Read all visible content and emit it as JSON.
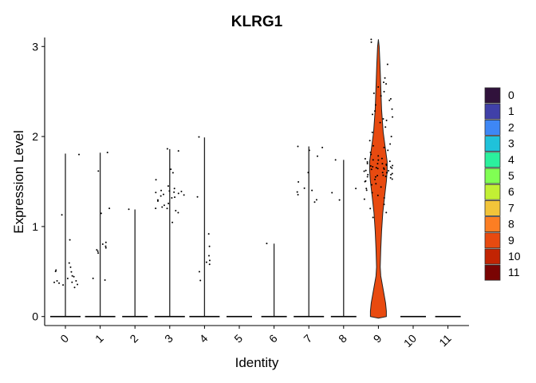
{
  "chart_data": {
    "type": "violin",
    "title": "KLRG1",
    "xlabel": "Identity",
    "ylabel": "Expression Level",
    "ylim": [
      -0.1,
      3.1
    ],
    "yticks": [
      0,
      1,
      2,
      3
    ],
    "categories": [
      "0",
      "1",
      "2",
      "3",
      "4",
      "5",
      "6",
      "7",
      "8",
      "9",
      "10",
      "11"
    ],
    "colors": [
      "#30123B",
      "#4040A8",
      "#3E87F5",
      "#1FC2DA",
      "#2BF19D",
      "#80FF53",
      "#C2F034",
      "#F2C43A",
      "#FC7E23",
      "#E84A10",
      "#C22403",
      "#7A0403"
    ],
    "legend_position": "right",
    "groups": [
      {
        "id": "0",
        "max": 1.81,
        "high_points": [
          0.85,
          0.6,
          0.55,
          0.52,
          0.5,
          0.45,
          0.44,
          0.42,
          0.4,
          0.4,
          0.38,
          0.38,
          0.37,
          0.36,
          0.35,
          0.32,
          0.5,
          1.13,
          1.8
        ]
      },
      {
        "id": "1",
        "max": 1.82,
        "high_points": [
          1.82,
          1.62,
          1.2,
          1.15,
          0.82,
          0.8,
          0.78,
          0.76,
          0.74,
          0.73,
          0.7,
          0.42,
          0.4
        ]
      },
      {
        "id": "2",
        "max": 1.19,
        "high_points": [
          1.19
        ]
      },
      {
        "id": "3",
        "max": 1.86,
        "high_points": [
          1.86,
          1.84,
          1.64,
          1.6,
          1.52,
          1.45,
          1.42,
          1.4,
          1.4,
          1.39,
          1.38,
          1.38,
          1.37,
          1.36,
          1.35,
          1.34,
          1.33,
          1.32,
          1.3,
          1.28,
          1.26,
          1.24,
          1.22,
          1.2,
          1.2,
          1.18,
          1.16,
          1.05
        ]
      },
      {
        "id": "4",
        "max": 1.99,
        "high_points": [
          1.99,
          1.33,
          0.92,
          0.78,
          0.68,
          0.62,
          0.6,
          0.58,
          0.5,
          0.4
        ]
      },
      {
        "id": "5",
        "max": 0.0,
        "high_points": []
      },
      {
        "id": "6",
        "max": 0.81,
        "high_points": [
          0.81
        ]
      },
      {
        "id": "7",
        "max": 1.89,
        "high_points": [
          1.89,
          1.88,
          1.85,
          1.78,
          1.6,
          1.5,
          1.42,
          1.4,
          1.38,
          1.35,
          1.3,
          1.27
        ]
      },
      {
        "id": "8",
        "max": 1.74,
        "high_points": [
          1.74,
          1.42,
          1.38,
          1.3
        ]
      },
      {
        "id": "9",
        "max": 3.08,
        "high_points": [
          3.08,
          3.05,
          2.8,
          2.65,
          2.6,
          2.58,
          2.55,
          2.5,
          2.48,
          2.45,
          2.42,
          2.4,
          2.35,
          2.3,
          2.28,
          2.25,
          2.22,
          2.2,
          2.18,
          2.15,
          2.1,
          2.05,
          2.0,
          1.95,
          1.92,
          1.9,
          1.88,
          1.85,
          1.82,
          1.8,
          1.78,
          1.76,
          1.75,
          1.74,
          1.72,
          1.7,
          1.7,
          1.69,
          1.68,
          1.67,
          1.66,
          1.65,
          1.65,
          1.64,
          1.63,
          1.62,
          1.61,
          1.6,
          1.6,
          1.59,
          1.58,
          1.57,
          1.56,
          1.55,
          1.55,
          1.54,
          1.53,
          1.52,
          1.5,
          1.48,
          1.46,
          1.44,
          1.42,
          1.4,
          1.38,
          1.35,
          1.32,
          1.3,
          1.25,
          1.2,
          1.15,
          1.1,
          1.65,
          1.72,
          1.58,
          1.62,
          1.68,
          1.66,
          1.6,
          1.7,
          1.5,
          1.56,
          1.64,
          1.74
        ]
      },
      {
        "id": "10",
        "max": 0.0,
        "high_points": []
      },
      {
        "id": "11",
        "max": 0.0,
        "high_points": []
      }
    ]
  }
}
